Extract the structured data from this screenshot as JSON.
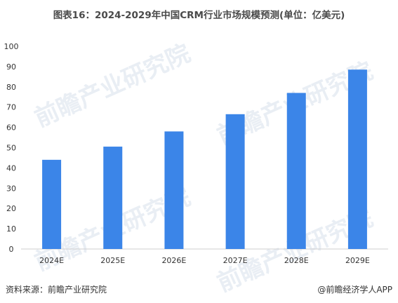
{
  "title": "图表16：2024-2029年中国CRM行业市场规模预测(单位：亿美元)",
  "footer": {
    "source": "资料来源：前瞻产业研究院",
    "credit": "@前瞻经济学人APP"
  },
  "watermark": "前瞻产业研究院",
  "colors": {
    "bar": "#3b85e8",
    "axis": "#cfcfcf",
    "text": "#333333"
  },
  "chart_data": {
    "type": "bar",
    "title": "图表16：2024-2029年中国CRM行业市场规模预测(单位：亿美元)",
    "categories": [
      "2024E",
      "2025E",
      "2026E",
      "2027E",
      "2028E",
      "2029E"
    ],
    "values": [
      44,
      50.5,
      58,
      66.5,
      77,
      88.5
    ],
    "ylim": [
      0,
      100
    ],
    "yticks": [
      0,
      10,
      20,
      30,
      40,
      50,
      60,
      70,
      80,
      90,
      100
    ],
    "xlabel": "",
    "ylabel": "",
    "grid": false,
    "legend": "none"
  }
}
